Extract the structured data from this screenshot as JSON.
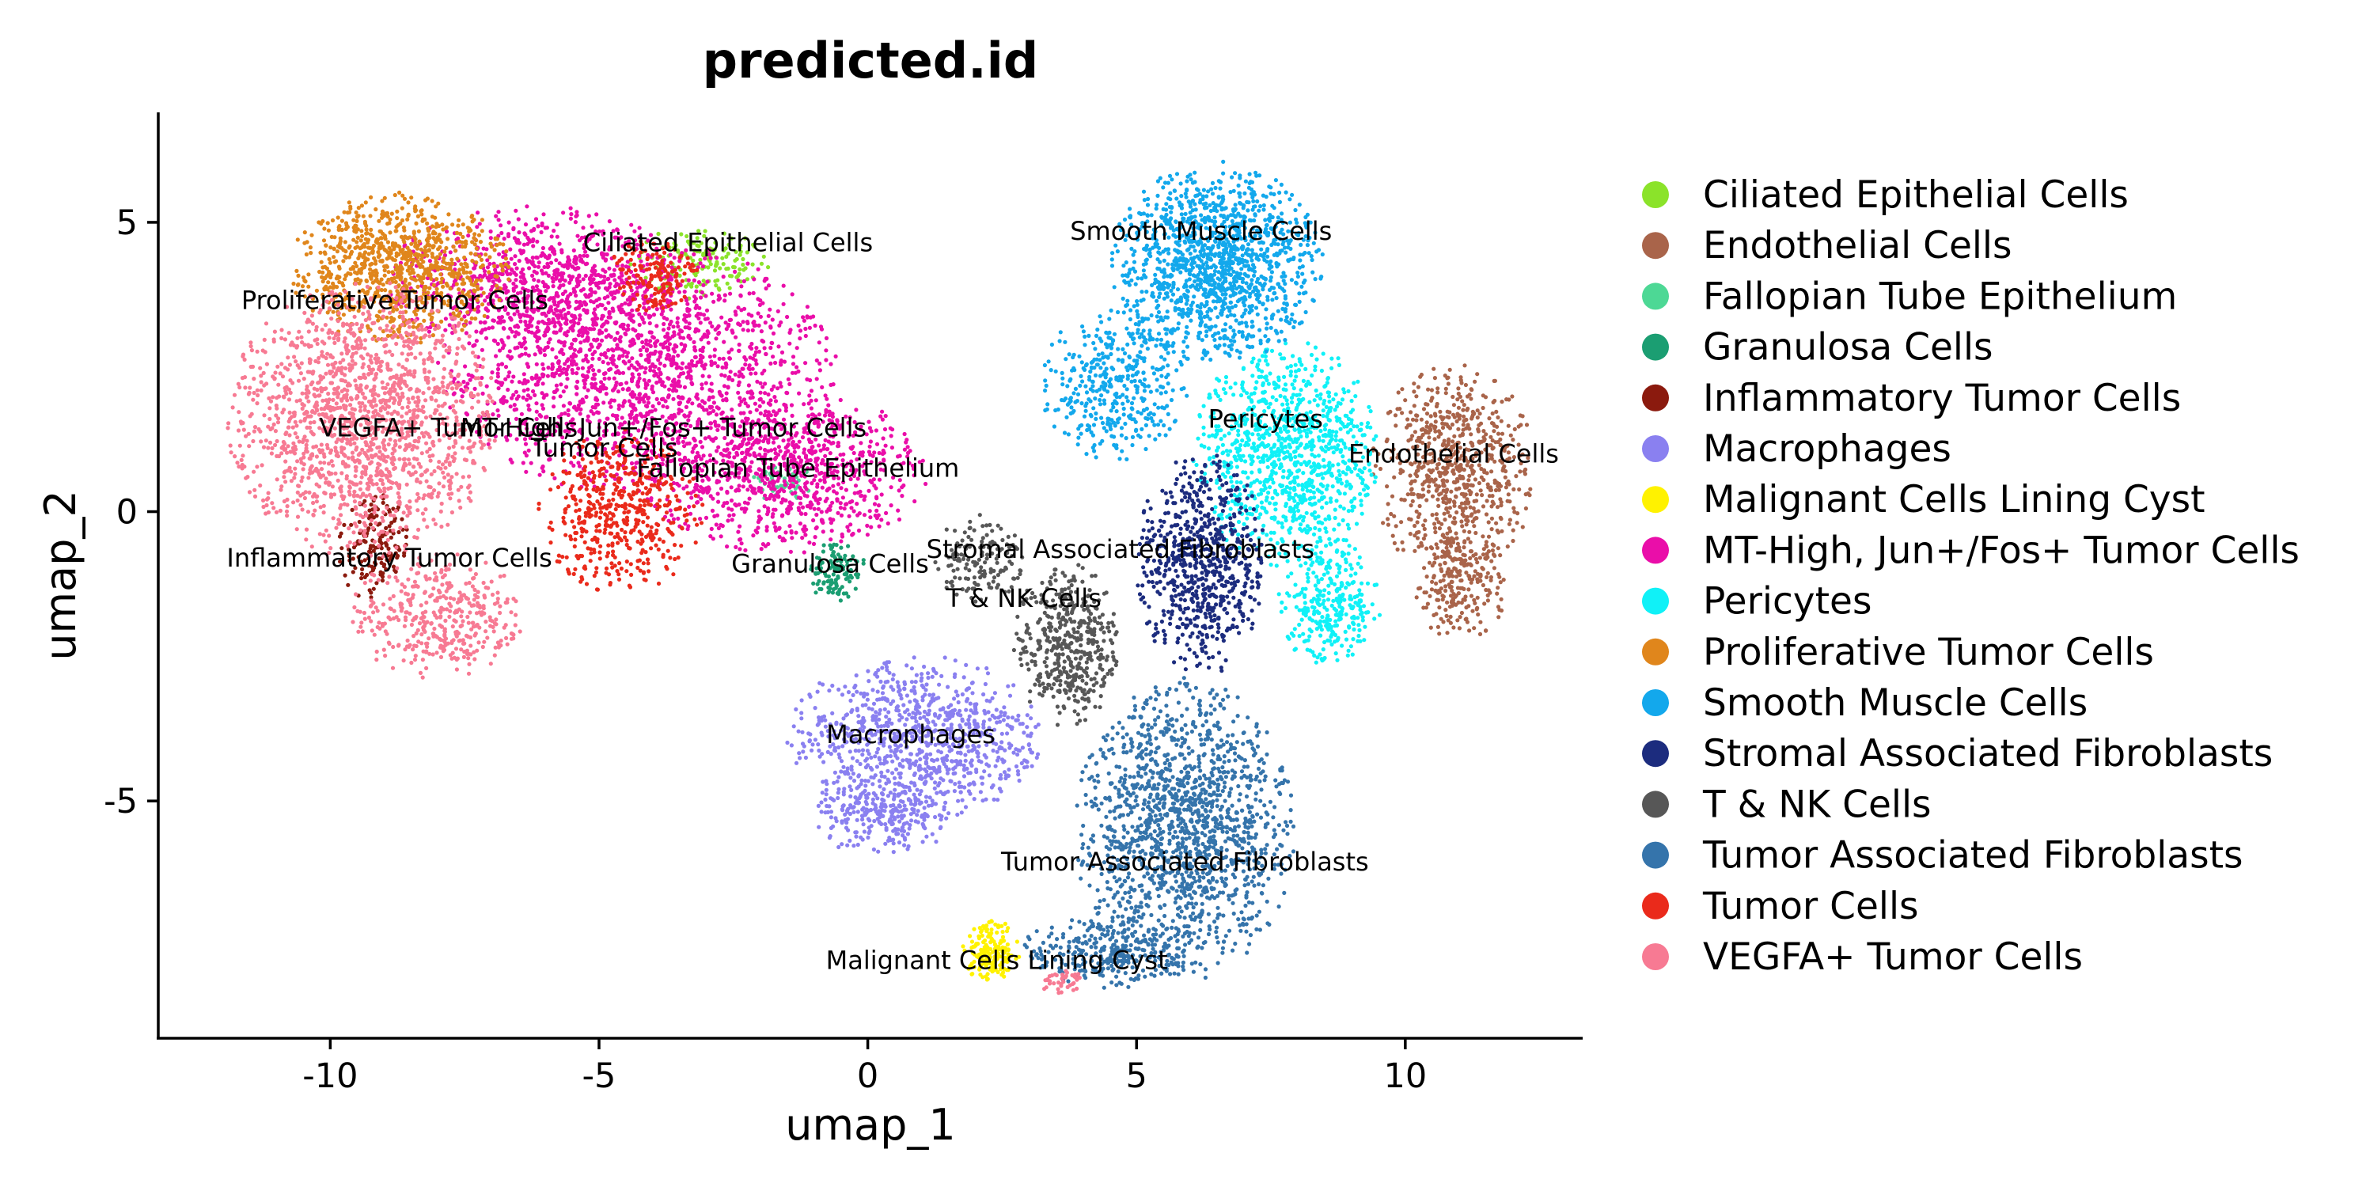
{
  "chart_data": {
    "type": "scatter",
    "title": "predicted.id",
    "xlabel": "umap_1",
    "ylabel": "umap_2",
    "xlim": [
      -13.2,
      13.3
    ],
    "ylim": [
      -9.1,
      6.9
    ],
    "xticks": [
      {
        "value": -10,
        "label": "-10"
      },
      {
        "value": -5,
        "label": "-5"
      },
      {
        "value": 0,
        "label": "0"
      },
      {
        "value": 5,
        "label": "5"
      },
      {
        "value": 10,
        "label": "10"
      }
    ],
    "yticks": [
      {
        "value": -5,
        "label": "-5"
      },
      {
        "value": 0,
        "label": "0"
      },
      {
        "value": 5,
        "label": "5"
      }
    ],
    "grid": false,
    "legend_position": "right",
    "series": [
      {
        "name": "Ciliated Epithelial Cells",
        "color": "#8BE32A",
        "label_pos": [
          -2.6,
          4.5
        ],
        "blobs": [
          {
            "cx": -3.1,
            "cy": 4.3,
            "rx": 1.2,
            "ry": 0.6,
            "n": 160
          }
        ]
      },
      {
        "name": "Endothelial Cells",
        "color": "#A9644A",
        "label_pos": [
          10.9,
          0.85
        ],
        "blobs": [
          {
            "cx": 10.9,
            "cy": 0.7,
            "rx": 1.4,
            "ry": 1.7,
            "n": 700
          },
          {
            "cx": 11.0,
            "cy": -1.3,
            "rx": 0.8,
            "ry": 0.9,
            "n": 220
          }
        ]
      },
      {
        "name": "Fallopian Tube Epithelium",
        "color": "#4DD895",
        "label_pos": [
          -1.3,
          0.6
        ],
        "blobs": [
          {
            "cx": -1.6,
            "cy": 0.5,
            "rx": 0.5,
            "ry": 0.35,
            "n": 60
          }
        ]
      },
      {
        "name": "Granulosa Cells",
        "color": "#1B9E72",
        "label_pos": [
          -0.7,
          -1.05
        ],
        "blobs": [
          {
            "cx": -0.6,
            "cy": -1.0,
            "rx": 0.5,
            "ry": 0.5,
            "n": 110
          }
        ]
      },
      {
        "name": "Inflammatory Tumor Cells",
        "color": "#8B1A0E",
        "label_pos": [
          -8.9,
          -0.95
        ],
        "blobs": [
          {
            "cx": -9.2,
            "cy": -0.6,
            "rx": 0.6,
            "ry": 0.9,
            "n": 160
          }
        ]
      },
      {
        "name": "Macrophages",
        "color": "#8A80F0",
        "label_pos": [
          0.8,
          -4.0
        ],
        "blobs": [
          {
            "cx": 0.9,
            "cy": -3.9,
            "rx": 2.2,
            "ry": 1.3,
            "n": 900
          },
          {
            "cx": 0.3,
            "cy": -5.3,
            "rx": 1.2,
            "ry": 0.6,
            "n": 250
          }
        ]
      },
      {
        "name": "Malignant Cells Lining Cyst",
        "color": "#FFF200",
        "label_pos": [
          2.4,
          -7.9
        ],
        "blobs": [
          {
            "cx": 2.3,
            "cy": -7.6,
            "rx": 0.5,
            "ry": 0.5,
            "n": 180
          }
        ]
      },
      {
        "name": "MT-High, Jun+/Fos+ Tumor Cells",
        "color": "#EA0EA9",
        "label_pos": [
          -3.8,
          1.3
        ],
        "blobs": [
          {
            "cx": -4.3,
            "cy": 2.5,
            "rx": 3.4,
            "ry": 2.0,
            "n": 1700
          },
          {
            "cx": -1.6,
            "cy": 0.7,
            "rx": 2.5,
            "ry": 1.3,
            "n": 900
          },
          {
            "cx": -6.2,
            "cy": 4.0,
            "rx": 2.5,
            "ry": 1.2,
            "n": 700
          }
        ]
      },
      {
        "name": "Pericytes",
        "color": "#10F1F7",
        "label_pos": [
          7.4,
          1.45
        ],
        "blobs": [
          {
            "cx": 7.8,
            "cy": 1.0,
            "rx": 1.6,
            "ry": 1.8,
            "n": 1000
          },
          {
            "cx": 8.6,
            "cy": -1.6,
            "rx": 0.9,
            "ry": 1.0,
            "n": 300
          }
        ]
      },
      {
        "name": "Proliferative Tumor Cells",
        "color": "#E0861C",
        "label_pos": [
          -8.8,
          3.5
        ],
        "blobs": [
          {
            "cx": -8.7,
            "cy": 4.2,
            "rx": 1.9,
            "ry": 1.2,
            "n": 900
          }
        ]
      },
      {
        "name": "Smooth Muscle Cells",
        "color": "#13A8EC",
        "label_pos": [
          6.2,
          4.7
        ],
        "blobs": [
          {
            "cx": 6.5,
            "cy": 4.3,
            "rx": 1.8,
            "ry": 1.6,
            "n": 1300
          },
          {
            "cx": 4.6,
            "cy": 2.2,
            "rx": 1.3,
            "ry": 1.2,
            "n": 400
          }
        ]
      },
      {
        "name": "Stromal Associated Fibroblasts",
        "color": "#1C2C7E",
        "label_pos": [
          4.7,
          -0.8
        ],
        "blobs": [
          {
            "cx": 6.2,
            "cy": -0.9,
            "rx": 1.1,
            "ry": 1.8,
            "n": 700
          }
        ]
      },
      {
        "name": "T & NK Cells",
        "color": "#575757",
        "label_pos": [
          2.9,
          -1.65
        ],
        "blobs": [
          {
            "cx": 3.7,
            "cy": -2.3,
            "rx": 0.9,
            "ry": 1.3,
            "n": 450
          },
          {
            "cx": 2.1,
            "cy": -0.8,
            "rx": 0.8,
            "ry": 0.7,
            "n": 150
          }
        ]
      },
      {
        "name": "Tumor Associated Fibroblasts",
        "color": "#3574AB",
        "label_pos": [
          5.9,
          -6.2
        ],
        "blobs": [
          {
            "cx": 5.9,
            "cy": -5.5,
            "rx": 1.9,
            "ry": 2.4,
            "n": 1500
          },
          {
            "cx": 4.5,
            "cy": -7.6,
            "rx": 1.5,
            "ry": 0.6,
            "n": 300
          }
        ]
      },
      {
        "name": "Tumor Cells",
        "color": "#EA2A1B",
        "label_pos": [
          -4.9,
          0.95
        ],
        "blobs": [
          {
            "cx": -4.6,
            "cy": 0.0,
            "rx": 1.4,
            "ry": 1.3,
            "n": 500
          },
          {
            "cx": -4.0,
            "cy": 4.1,
            "rx": 0.8,
            "ry": 0.6,
            "n": 150
          }
        ]
      },
      {
        "name": "VEGFA+ Tumor Cells",
        "color": "#F77A93",
        "label_pos": [
          -7.8,
          1.3
        ],
        "blobs": [
          {
            "cx": -9.4,
            "cy": 1.6,
            "rx": 2.3,
            "ry": 2.2,
            "n": 1600
          },
          {
            "cx": -8.0,
            "cy": -1.8,
            "rx": 1.5,
            "ry": 1.0,
            "n": 400
          },
          {
            "cx": 3.6,
            "cy": -8.1,
            "rx": 0.4,
            "ry": 0.2,
            "n": 40
          }
        ]
      }
    ]
  }
}
